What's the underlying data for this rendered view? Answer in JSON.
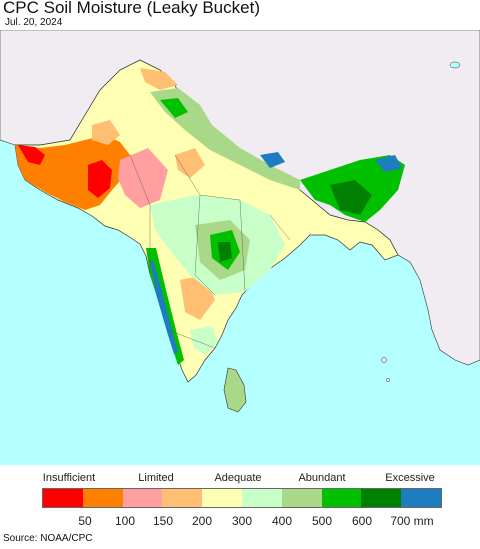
{
  "header": {
    "title": "CPC Soil Moisture (Leaky Bucket)",
    "date": "Jul. 20, 2024"
  },
  "legend": {
    "categories": [
      "Insufficient",
      "Limited",
      "Adequate",
      "Abundant",
      "Excessive"
    ],
    "colors": [
      "#ff0000",
      "#ff8000",
      "#ff9f9f",
      "#ffbf73",
      "#ffffb4",
      "#c8ffc8",
      "#a8d888",
      "#00c000",
      "#008000",
      "#1e7cc0"
    ],
    "ticks": [
      "50",
      "100",
      "150",
      "200",
      "300",
      "400",
      "500",
      "600",
      "700 mm"
    ]
  },
  "map": {
    "ocean_color": "#b4ffff",
    "outside_land_color": "#f0ecf2"
  },
  "footer": {
    "source": "Source: NOAA/CPC"
  }
}
